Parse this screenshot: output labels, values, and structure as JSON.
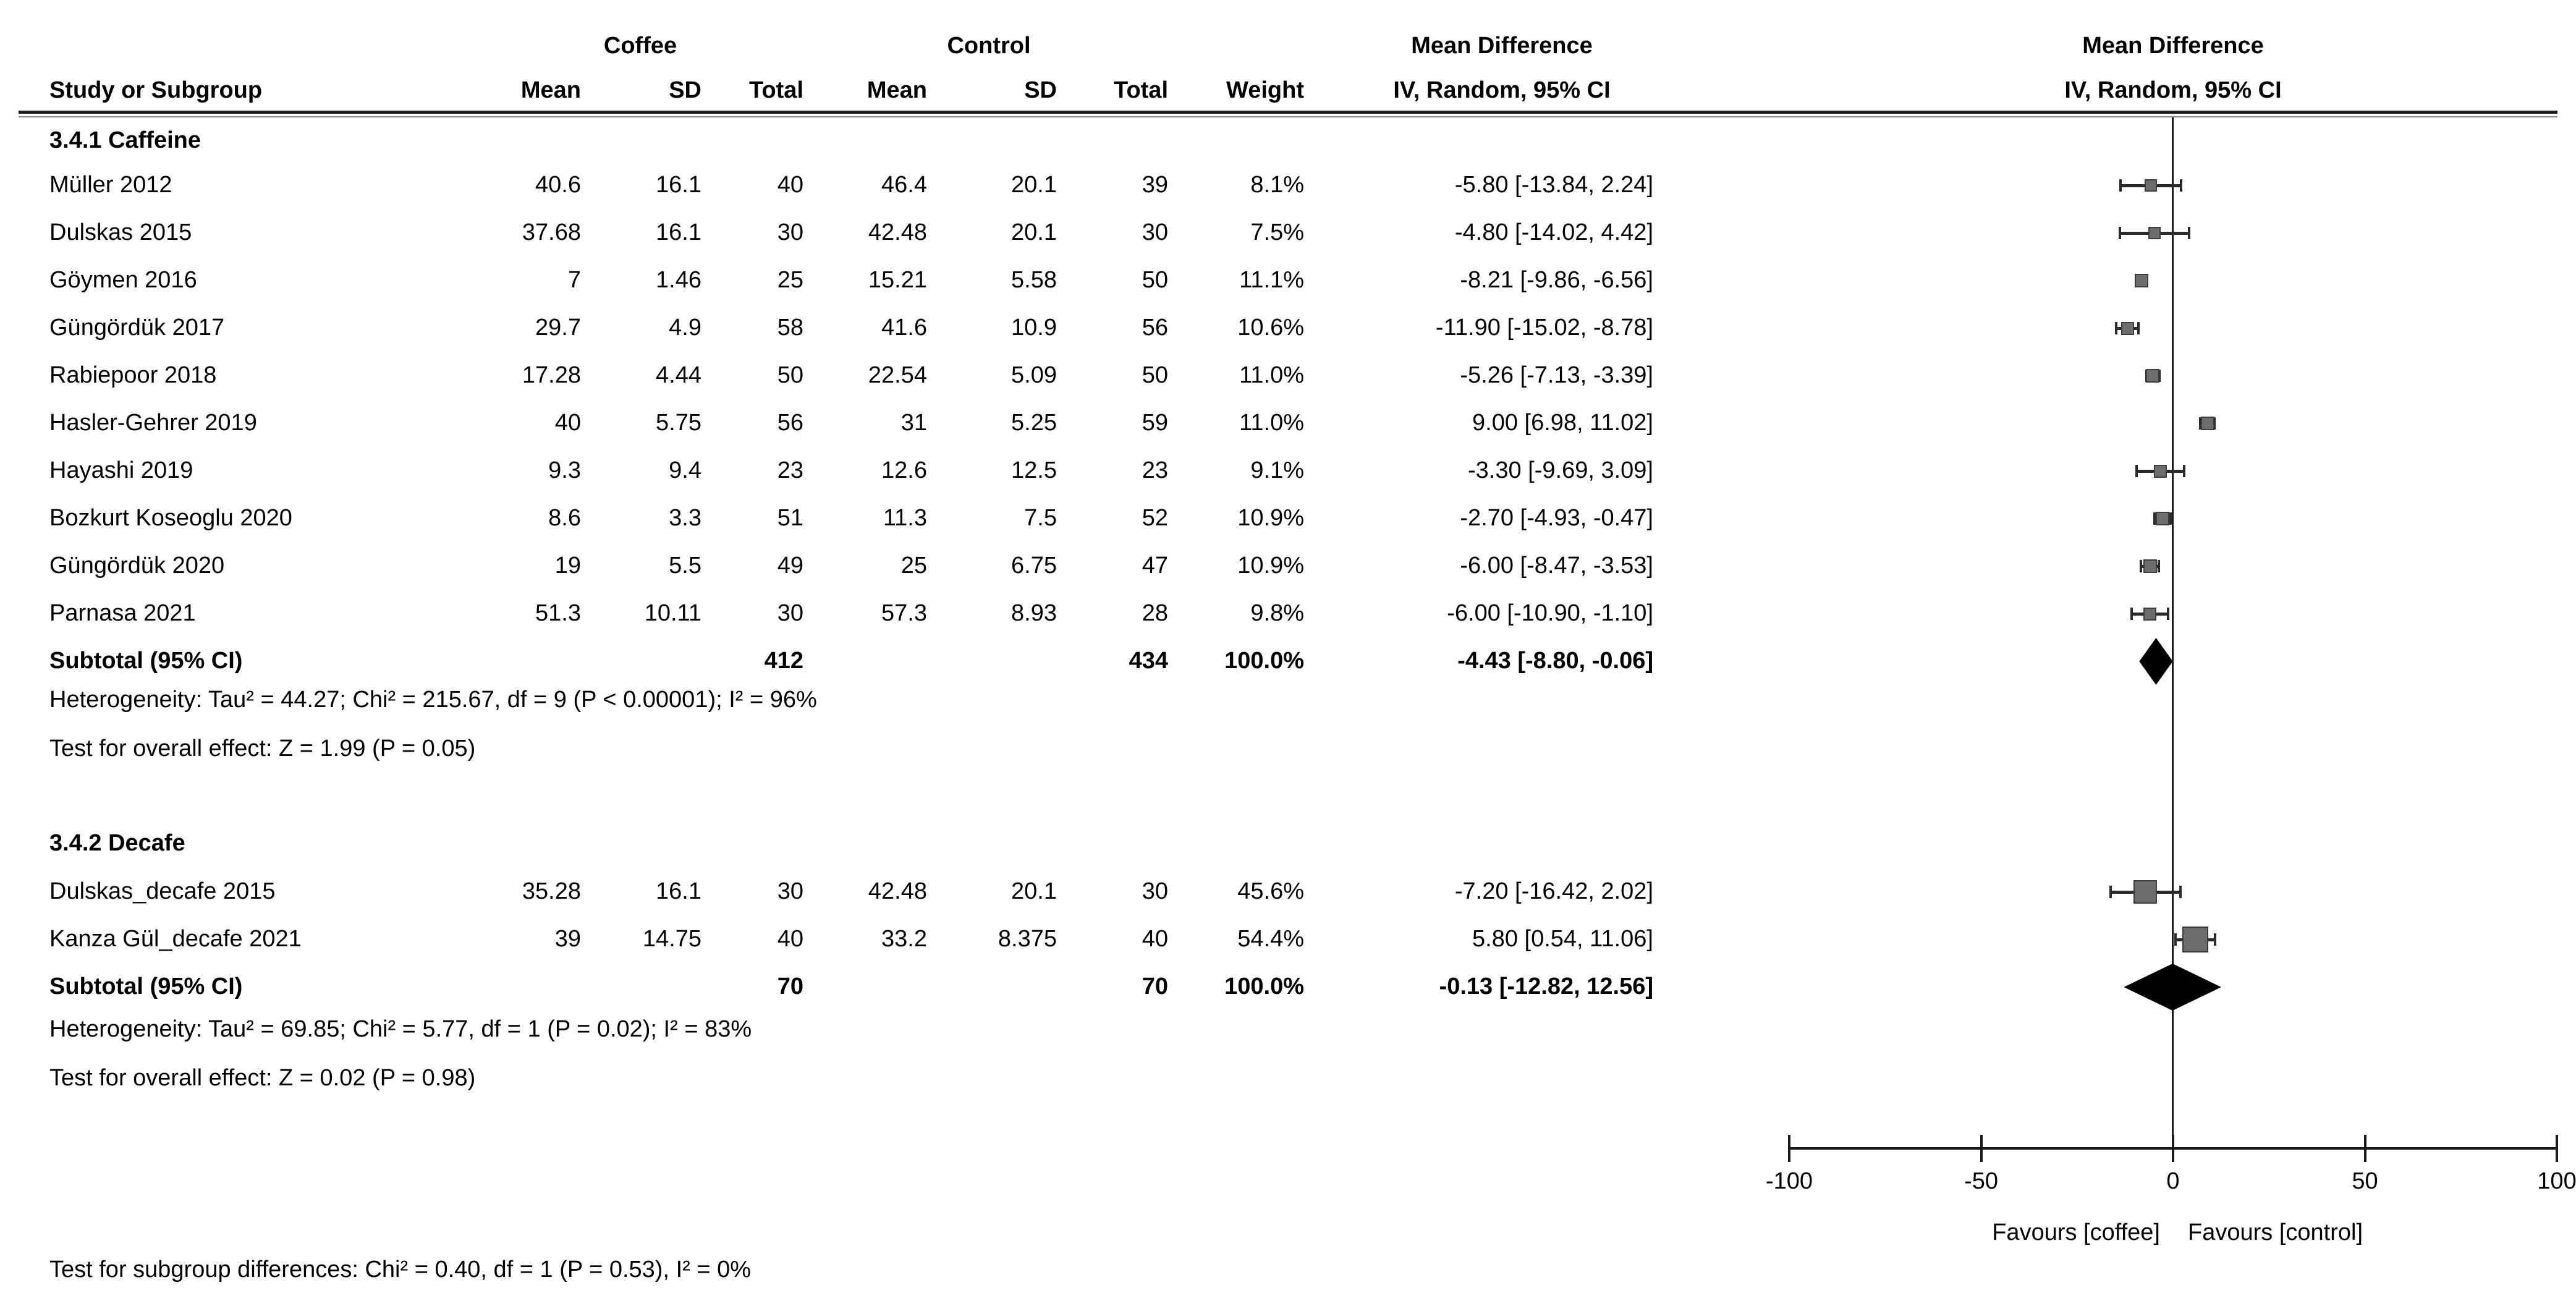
{
  "header": {
    "group1": "Coffee",
    "group2": "Control",
    "effect_title": "Mean Difference",
    "effect_subtitle": "IV, Random, 95% CI",
    "plot_title": "Mean Difference",
    "plot_subtitle": "IV, Random, 95% CI",
    "col_study": "Study or Subgroup",
    "col_mean": "Mean",
    "col_sd": "SD",
    "col_total": "Total",
    "col_weight": "Weight"
  },
  "groups": [
    {
      "title": "3.4.1 Caffeine",
      "studies": [
        {
          "name": "Müller 2012",
          "mean1": "40.6",
          "sd1": "16.1",
          "total1": "40",
          "mean2": "46.4",
          "sd2": "20.1",
          "total2": "39",
          "weight": "8.1%",
          "ci_text": "-5.80 [-13.84, 2.24]",
          "est": -5.8,
          "lo": -13.84,
          "hi": 2.24,
          "weight_pct": 8.1
        },
        {
          "name": "Dulskas 2015",
          "mean1": "37.68",
          "sd1": "16.1",
          "total1": "30",
          "mean2": "42.48",
          "sd2": "20.1",
          "total2": "30",
          "weight": "7.5%",
          "ci_text": "-4.80 [-14.02, 4.42]",
          "est": -4.8,
          "lo": -14.02,
          "hi": 4.42,
          "weight_pct": 7.5
        },
        {
          "name": "Göymen 2016",
          "mean1": "7",
          "sd1": "1.46",
          "total1": "25",
          "mean2": "15.21",
          "sd2": "5.58",
          "total2": "50",
          "weight": "11.1%",
          "ci_text": "-8.21 [-9.86, -6.56]",
          "est": -8.21,
          "lo": -9.86,
          "hi": -6.56,
          "weight_pct": 11.1
        },
        {
          "name": "Güngördük 2017",
          "mean1": "29.7",
          "sd1": "4.9",
          "total1": "58",
          "mean2": "41.6",
          "sd2": "10.9",
          "total2": "56",
          "weight": "10.6%",
          "ci_text": "-11.90 [-15.02, -8.78]",
          "est": -11.9,
          "lo": -15.02,
          "hi": -8.78,
          "weight_pct": 10.6
        },
        {
          "name": "Rabiepoor 2018",
          "mean1": "17.28",
          "sd1": "4.44",
          "total1": "50",
          "mean2": "22.54",
          "sd2": "5.09",
          "total2": "50",
          "weight": "11.0%",
          "ci_text": "-5.26 [-7.13, -3.39]",
          "est": -5.26,
          "lo": -7.13,
          "hi": -3.39,
          "weight_pct": 11.0
        },
        {
          "name": "Hasler-Gehrer 2019",
          "mean1": "40",
          "sd1": "5.75",
          "total1": "56",
          "mean2": "31",
          "sd2": "5.25",
          "total2": "59",
          "weight": "11.0%",
          "ci_text": "9.00 [6.98, 11.02]",
          "est": 9.0,
          "lo": 6.98,
          "hi": 11.02,
          "weight_pct": 11.0
        },
        {
          "name": "Hayashi 2019",
          "mean1": "9.3",
          "sd1": "9.4",
          "total1": "23",
          "mean2": "12.6",
          "sd2": "12.5",
          "total2": "23",
          "weight": "9.1%",
          "ci_text": "-3.30 [-9.69, 3.09]",
          "est": -3.3,
          "lo": -9.69,
          "hi": 3.09,
          "weight_pct": 9.1
        },
        {
          "name": "Bozkurt Koseoglu 2020",
          "mean1": "8.6",
          "sd1": "3.3",
          "total1": "51",
          "mean2": "11.3",
          "sd2": "7.5",
          "total2": "52",
          "weight": "10.9%",
          "ci_text": "-2.70 [-4.93, -0.47]",
          "est": -2.7,
          "lo": -4.93,
          "hi": -0.47,
          "weight_pct": 10.9
        },
        {
          "name": "Güngördük 2020",
          "mean1": "19",
          "sd1": "5.5",
          "total1": "49",
          "mean2": "25",
          "sd2": "6.75",
          "total2": "47",
          "weight": "10.9%",
          "ci_text": "-6.00 [-8.47, -3.53]",
          "est": -6.0,
          "lo": -8.47,
          "hi": -3.53,
          "weight_pct": 10.9
        },
        {
          "name": "Parnasa 2021",
          "mean1": "51.3",
          "sd1": "10.11",
          "total1": "30",
          "mean2": "57.3",
          "sd2": "8.93",
          "total2": "28",
          "weight": "9.8%",
          "ci_text": "-6.00 [-10.90, -1.10]",
          "est": -6.0,
          "lo": -10.9,
          "hi": -1.1,
          "weight_pct": 9.8
        }
      ],
      "subtotal": {
        "label": "Subtotal (95% CI)",
        "total1": "412",
        "total2": "434",
        "weight": "100.0%",
        "ci_text": "-4.43 [-8.80, -0.06]",
        "est": -4.43,
        "lo": -8.8,
        "hi": -0.06
      },
      "heterogeneity": "Heterogeneity: Tau² = 44.27; Chi² = 215.67, df = 9 (P < 0.00001); I² = 96%",
      "overall_effect": "Test for overall effect: Z = 1.99 (P = 0.05)"
    },
    {
      "title": "3.4.2 Decafe",
      "studies": [
        {
          "name": "Dulskas_decafe 2015",
          "mean1": "35.28",
          "sd1": "16.1",
          "total1": "30",
          "mean2": "42.48",
          "sd2": "20.1",
          "total2": "30",
          "weight": "45.6%",
          "ci_text": "-7.20 [-16.42, 2.02]",
          "est": -7.2,
          "lo": -16.42,
          "hi": 2.02,
          "weight_pct": 45.6
        },
        {
          "name": "Kanza Gül_decafe 2021",
          "mean1": "39",
          "sd1": "14.75",
          "total1": "40",
          "mean2": "33.2",
          "sd2": "8.375",
          "total2": "40",
          "weight": "54.4%",
          "ci_text": "5.80 [0.54, 11.06]",
          "est": 5.8,
          "lo": 0.54,
          "hi": 11.06,
          "weight_pct": 54.4
        }
      ],
      "subtotal": {
        "label": "Subtotal (95% CI)",
        "total1": "70",
        "total2": "70",
        "weight": "100.0%",
        "ci_text": "-0.13 [-12.82, 12.56]",
        "est": -0.13,
        "lo": -12.82,
        "hi": 12.56
      },
      "heterogeneity": "Heterogeneity: Tau² = 69.85; Chi² = 5.77, df = 1 (P = 0.02); I² = 83%",
      "overall_effect": "Test for overall effect: Z = 0.02 (P = 0.98)"
    }
  ],
  "footer": {
    "subgroup_diff": "Test for subgroup differences: Chi² = 0.40, df = 1 (P = 0.53), I² = 0%"
  },
  "axis": {
    "min": -100,
    "max": 100,
    "ticks": [
      -100,
      -50,
      0,
      50,
      100
    ],
    "tick_labels": [
      "-100",
      "-50",
      "0",
      "50",
      "100"
    ],
    "favours_left": "Favours [coffee]",
    "favours_right": "Favours [control]"
  },
  "colors": {
    "square": "#6d6d6d",
    "square_border": "#3d3d3d",
    "diamond": "#000000",
    "line": "#2a2a2a",
    "text": "#000000"
  },
  "chart_data": {
    "type": "scatter",
    "subtype": "forest_plot",
    "title": "Mean Difference",
    "model": "IV, Random, 95% CI",
    "xlim": [
      -100,
      100
    ],
    "xticks": [
      -100,
      -50,
      0,
      50,
      100
    ],
    "x_axis_note": [
      "Favours [coffee]",
      "Favours [control]"
    ],
    "series": [
      {
        "name": "3.4.1 Caffeine",
        "points": [
          {
            "label": "Müller 2012",
            "est": -5.8,
            "lo": -13.84,
            "hi": 2.24,
            "weight_pct": 8.1
          },
          {
            "label": "Dulskas 2015",
            "est": -4.8,
            "lo": -14.02,
            "hi": 4.42,
            "weight_pct": 7.5
          },
          {
            "label": "Göymen 2016",
            "est": -8.21,
            "lo": -9.86,
            "hi": -6.56,
            "weight_pct": 11.1
          },
          {
            "label": "Güngördük 2017",
            "est": -11.9,
            "lo": -15.02,
            "hi": -8.78,
            "weight_pct": 10.6
          },
          {
            "label": "Rabiepoor 2018",
            "est": -5.26,
            "lo": -7.13,
            "hi": -3.39,
            "weight_pct": 11.0
          },
          {
            "label": "Hasler-Gehrer 2019",
            "est": 9.0,
            "lo": 6.98,
            "hi": 11.02,
            "weight_pct": 11.0
          },
          {
            "label": "Hayashi 2019",
            "est": -3.3,
            "lo": -9.69,
            "hi": 3.09,
            "weight_pct": 9.1
          },
          {
            "label": "Bozkurt Koseoglu 2020",
            "est": -2.7,
            "lo": -4.93,
            "hi": -0.47,
            "weight_pct": 10.9
          },
          {
            "label": "Güngördük 2020",
            "est": -6.0,
            "lo": -8.47,
            "hi": -3.53,
            "weight_pct": 10.9
          },
          {
            "label": "Parnasa 2021",
            "est": -6.0,
            "lo": -10.9,
            "hi": -1.1,
            "weight_pct": 9.8
          }
        ],
        "subtotal": {
          "est": -4.43,
          "lo": -8.8,
          "hi": -0.06
        }
      },
      {
        "name": "3.4.2 Decafe",
        "points": [
          {
            "label": "Dulskas_decafe 2015",
            "est": -7.2,
            "lo": -16.42,
            "hi": 2.02,
            "weight_pct": 45.6
          },
          {
            "label": "Kanza Gül_decafe 2021",
            "est": 5.8,
            "lo": 0.54,
            "hi": 11.06,
            "weight_pct": 54.4
          }
        ],
        "subtotal": {
          "est": -0.13,
          "lo": -12.82,
          "hi": 12.56
        }
      }
    ]
  }
}
